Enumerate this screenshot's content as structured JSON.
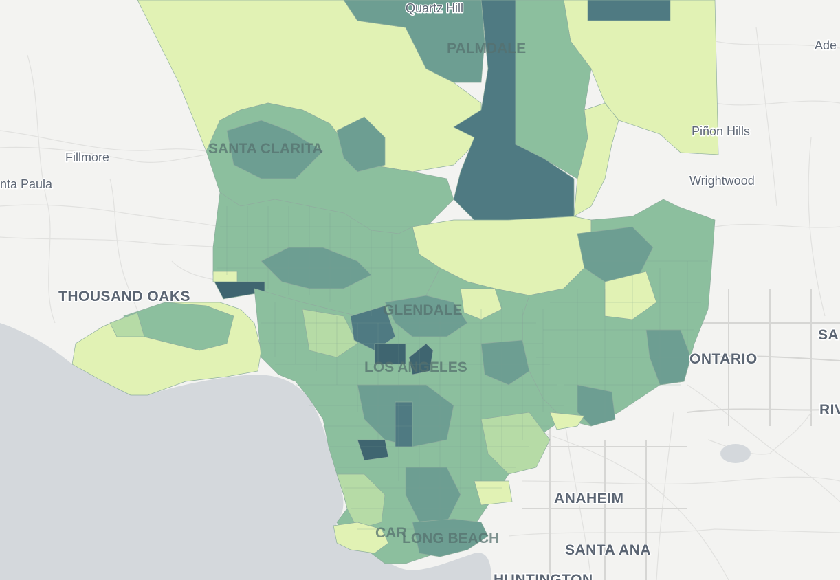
{
  "map": {
    "palette": {
      "water": "#d4d8dc",
      "land": "#f3f3f1",
      "class_1": "#e1f2b4",
      "class_2": "#b6dba6",
      "class_3": "#8cbf9e",
      "class_4": "#6d9e92",
      "class_5": "#4f7a82",
      "class_6": "#3f6570"
    },
    "place_labels": {
      "quartz_hill": "Quartz Hill",
      "palmdale": "PALMDALE",
      "adelanto": "Ade",
      "santa_clarita": "SANTA CLARITA",
      "pinon_hills": "Piñon Hills",
      "fillmore": "Fillmore",
      "santa_paula": "nta Paula",
      "wrightwood": "Wrightwood",
      "thousand_oaks": "THOUSAND OAKS",
      "glendale": "GLENDALE",
      "san_bernardino": "SA",
      "ontario": "ONTARIO",
      "los_angeles": "LOS ANGELES",
      "riverside": "RIV",
      "anaheim": "ANAHEIM",
      "carson": "CAR",
      "long_beach": "LONG BEACH",
      "santa_ana": "SANTA ANA",
      "huntington": "HUNTINGTON"
    }
  }
}
